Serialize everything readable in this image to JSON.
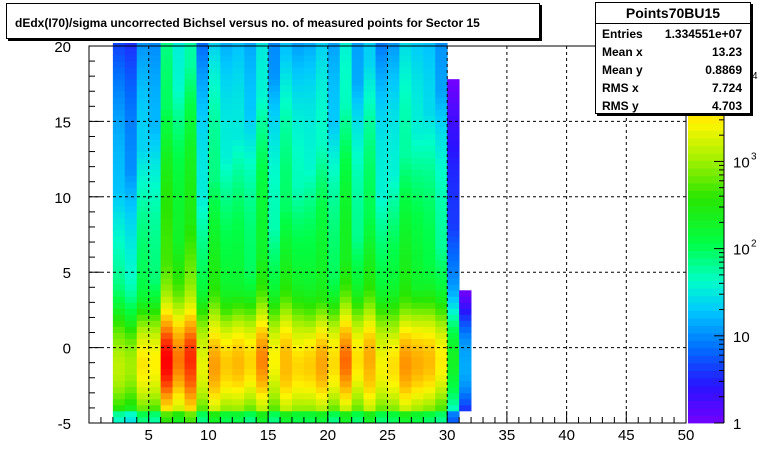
{
  "chart_data": {
    "type": "heatmap",
    "title": "dEdx(I70)/sigma uncorrected Bichsel versus no. of measured points for Sector 15",
    "xlim": [
      0,
      50
    ],
    "ylim": [
      -5,
      20
    ],
    "x_ticks": [
      "5",
      "10",
      "15",
      "20",
      "25",
      "30",
      "35",
      "40",
      "45",
      "50"
    ],
    "y_ticks": [
      "-5",
      "0",
      "5",
      "10",
      "15",
      "20"
    ],
    "z_scale": "log",
    "z_ticks": [
      {
        "label": "1",
        "sup": "",
        "value": 1
      },
      {
        "label": "10",
        "sup": "",
        "value": 10
      },
      {
        "label": "10",
        "sup": "2",
        "value": 100
      },
      {
        "label": "10",
        "sup": "3",
        "value": 1000
      },
      {
        "label": "",
        "sup": "4",
        "value": 10000
      }
    ],
    "zlim": [
      1,
      20000
    ],
    "grid": true,
    "x_bins": {
      "start": 2,
      "end": 32,
      "width": 1
    },
    "column_peak": [
      1300,
      900,
      2500,
      2200,
      16000,
      8000,
      15000,
      2200,
      6000,
      3500,
      4000,
      3000,
      7000,
      2500,
      5500,
      3500,
      3500,
      5000,
      2800,
      8000,
      3000,
      6000,
      2500,
      3000,
      6000,
      4500,
      4000,
      2500,
      200,
      15
    ],
    "y_profile": {
      "peak_y": -1,
      "core_width": 1.6,
      "tail_scale": 6.5,
      "tail_fraction": 0.1,
      "low_cut": -4.2
    }
  },
  "stats": {
    "name": "Points70BU15",
    "rows": [
      {
        "label": "Entries",
        "value": "1.334551e+07"
      },
      {
        "label": "Mean x",
        "value": "13.23"
      },
      {
        "label": "Mean y",
        "value": "0.8869"
      },
      {
        "label": "RMS x",
        "value": "7.724"
      },
      {
        "label": "RMS y",
        "value": "4.703"
      }
    ]
  }
}
